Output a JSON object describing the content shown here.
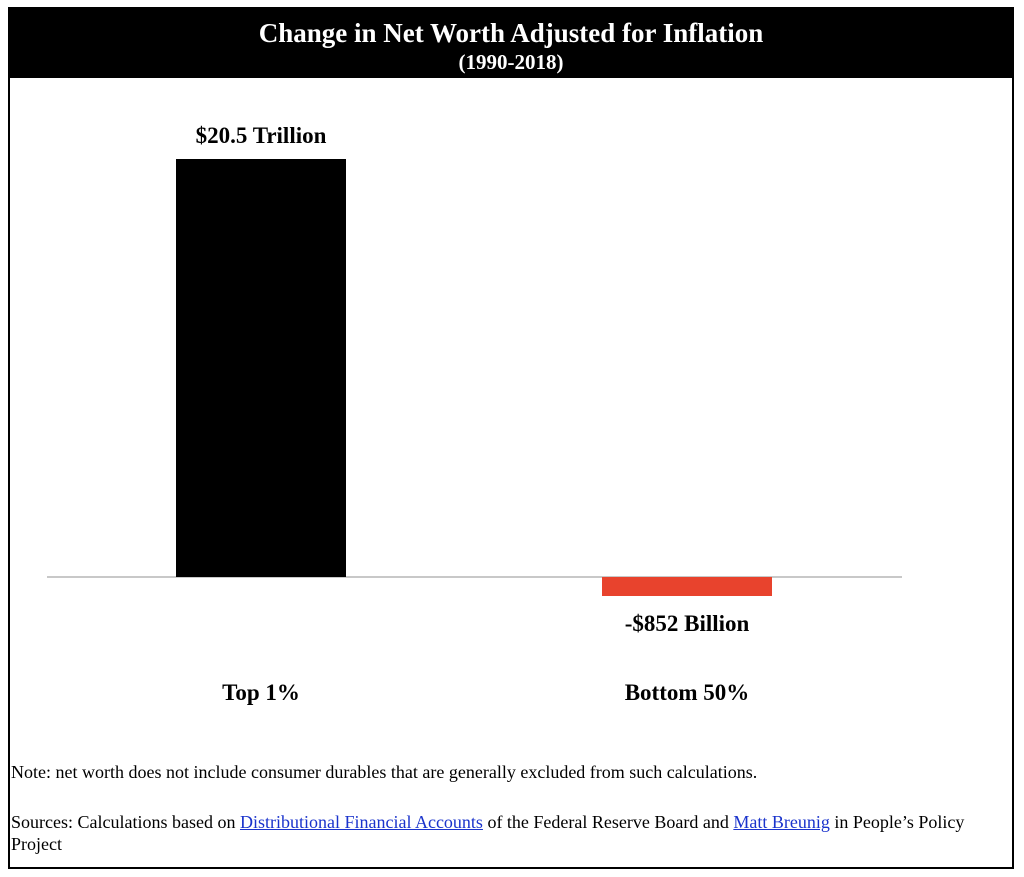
{
  "chart_data": {
    "type": "bar",
    "title": "Change in Net Worth Adjusted for Inflation",
    "subtitle": "(1990-2018)",
    "categories": [
      "Top 1%",
      "Bottom 50%"
    ],
    "values": [
      20.5,
      -0.852
    ],
    "data_labels": [
      "$20.5 Trillion",
      "-$852 Billion"
    ],
    "bar_colors": [
      "#000000",
      "#e8432d"
    ],
    "units": "trillions of dollars",
    "grid": false,
    "legend": "none"
  },
  "footer": {
    "note": "Note: net worth does not include consumer durables that are generally excluded from such calculations.",
    "sources_prefix": "Sources: Calculations based on ",
    "sources_link1": "Distributional Financial Accounts",
    "sources_middle": " of the Federal Reserve Board and ",
    "sources_link2": "Matt Breunig",
    "sources_suffix": " in People’s Policy Project"
  },
  "colors": {
    "header_bg": "#000000",
    "header_text": "#ffffff",
    "baseline": "#c8c8c8",
    "link": "#1a33cc"
  }
}
